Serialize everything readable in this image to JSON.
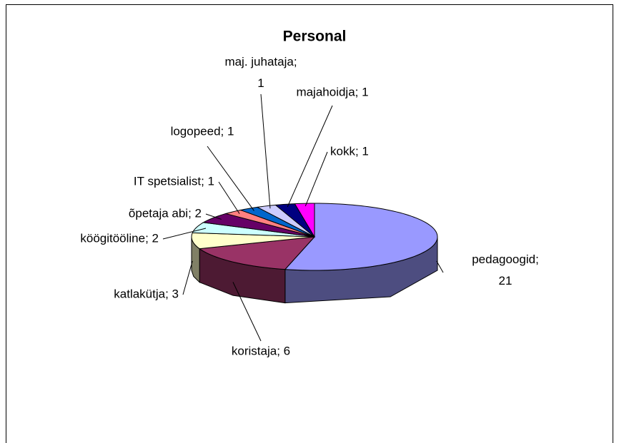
{
  "chart_data": {
    "type": "pie3d",
    "title": "Personal",
    "categories": [
      "pedagoogid",
      "koristaja",
      "katlakütja",
      "köögitööline",
      "õpetaja abi",
      "IT spetsialist",
      "logopeed",
      "maj. juhataja",
      "majahoidja",
      "kokk"
    ],
    "values": [
      21,
      6,
      3,
      2,
      2,
      1,
      1,
      1,
      1,
      1
    ],
    "value_labels": [
      "pedagoogid; 21",
      "koristaja; 6",
      "katlakütja; 3",
      "köögitööline; 2",
      "õpetaja abi; 2",
      "IT spetsialist; 1",
      "logopeed; 1",
      "maj. juhataja; 1",
      "majahoidja; 1",
      "kokk; 1"
    ],
    "colors": [
      "#9999ff",
      "#993366",
      "#ffffcc",
      "#ccffff",
      "#660066",
      "#ff8080",
      "#0066cc",
      "#ccccff",
      "#000080",
      "#ff00ff"
    ]
  }
}
